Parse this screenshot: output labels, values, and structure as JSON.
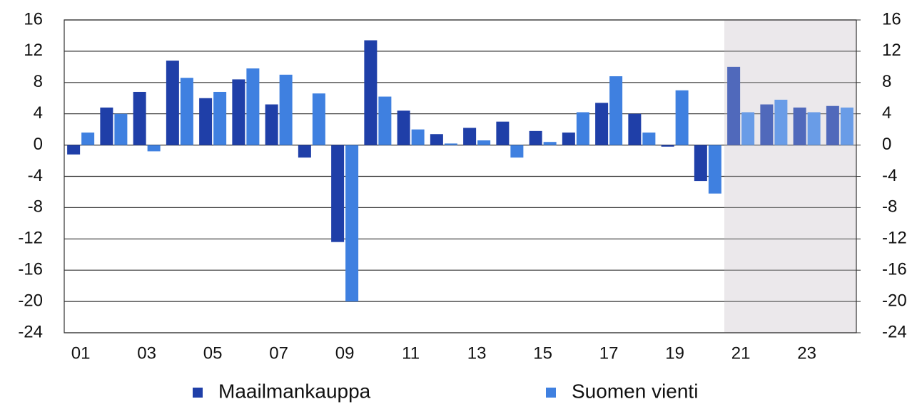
{
  "chart_data": {
    "type": "bar",
    "categories": [
      "01",
      null,
      "03",
      null,
      "05",
      null,
      "07",
      null,
      "09",
      null,
      "11",
      null,
      "13",
      null,
      "15",
      null,
      "17",
      null,
      "19",
      null,
      "21",
      null,
      "23",
      null
    ],
    "series": [
      {
        "name": "Maailmankauppa",
        "color": "#1f3fa8",
        "values": [
          -1.2,
          4.8,
          6.8,
          10.8,
          6.0,
          8.4,
          5.2,
          -1.6,
          -12.4,
          13.4,
          4.4,
          1.4,
          2.2,
          3.0,
          1.8,
          1.6,
          5.4,
          4.0,
          -0.2,
          -4.6,
          10.0,
          5.2,
          4.8,
          5.0
        ]
      },
      {
        "name": "Suomen vienti",
        "color": "#3f80e0",
        "values": [
          1.6,
          4.0,
          -0.8,
          8.6,
          6.8,
          9.8,
          9.0,
          6.6,
          -20,
          6.2,
          2.0,
          0.2,
          0.6,
          -1.6,
          0.4,
          4.2,
          8.8,
          1.6,
          7.0,
          -6.2,
          4.2,
          5.8,
          4.2,
          4.8
        ]
      }
    ],
    "ylim": [
      -24,
      16
    ],
    "yticks": [
      -24,
      -20,
      -16,
      -12,
      -8,
      -4,
      0,
      4,
      8,
      12,
      16
    ],
    "y2lim": [
      -24,
      16
    ],
    "y2ticks": [
      -24,
      -20,
      -16,
      -12,
      -8,
      -4,
      0,
      4,
      8,
      12,
      16
    ],
    "grid": true,
    "legend": "bottom"
  }
}
